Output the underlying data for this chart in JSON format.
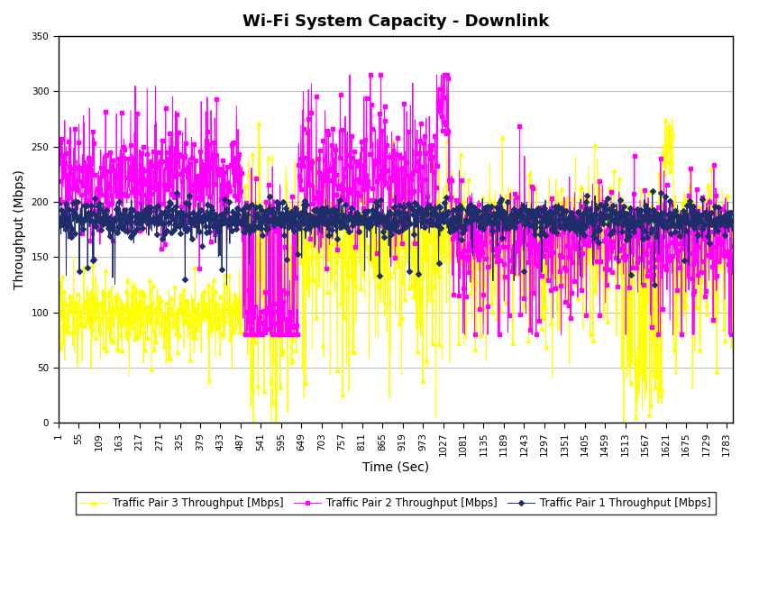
{
  "title": "Wi-Fi System Capacity - Downlink",
  "xlabel": "Time (Sec)",
  "ylabel": "Throughput (Mbps)",
  "ylim": [
    0,
    350
  ],
  "yticks": [
    0,
    50,
    100,
    150,
    200,
    250,
    300,
    350
  ],
  "x_tick_labels": [
    "1",
    "55",
    "109",
    "163",
    "217",
    "271",
    "325",
    "379",
    "433",
    "487",
    "541",
    "595",
    "649",
    "703",
    "757",
    "811",
    "865",
    "919",
    "973",
    "1027",
    "1081",
    "1135",
    "1189",
    "1243",
    "1297",
    "1351",
    "1405",
    "1459",
    "1513",
    "1567",
    "1621",
    "1675",
    "1729",
    "1783"
  ],
  "n_points": 1800,
  "color1": "#1F2D6B",
  "color2": "#FF00FF",
  "color3": "#FFFF00",
  "legend_labels": [
    "Traffic Pair 1 Throughput [Mbps]",
    "Traffic Pair 2 Throughput [Mbps]",
    "Traffic Pair 3 Throughput [Mbps]"
  ],
  "marker1": "D",
  "marker2": "s",
  "marker3": "^",
  "markersize": 3,
  "linewidth": 0.7,
  "title_fontsize": 13,
  "label_fontsize": 10,
  "tick_fontsize": 7.5,
  "legend_fontsize": 8.5,
  "background_color": "#FFFFFF",
  "grid_color": "#808080",
  "grid_alpha": 0.5,
  "grid_linewidth": 0.8
}
